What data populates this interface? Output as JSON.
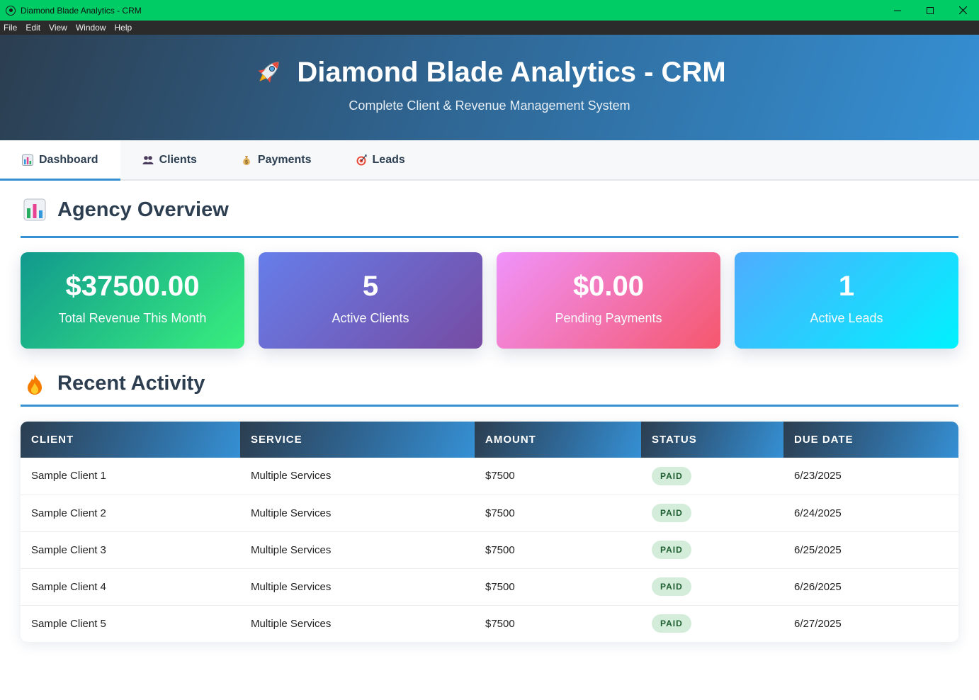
{
  "window": {
    "title": "Diamond Blade Analytics - CRM",
    "controls": {
      "minimize": "—",
      "maximize": "☐",
      "close": "✕"
    }
  },
  "menu": [
    "File",
    "Edit",
    "View",
    "Window",
    "Help"
  ],
  "header": {
    "icon": "rocket-icon",
    "title": "Diamond Blade Analytics - CRM",
    "subtitle": "Complete Client & Revenue Management System"
  },
  "tabs": [
    {
      "icon": "bar-chart-icon",
      "label": "Dashboard",
      "active": true
    },
    {
      "icon": "people-icon",
      "label": "Clients",
      "active": false
    },
    {
      "icon": "money-bag-icon",
      "label": "Payments",
      "active": false
    },
    {
      "icon": "target-icon",
      "label": "Leads",
      "active": false
    }
  ],
  "overview": {
    "icon": "bar-chart-icon",
    "title": "Agency Overview",
    "stats": [
      {
        "value": "$37500.00",
        "label": "Total Revenue This Month"
      },
      {
        "value": "5",
        "label": "Active Clients"
      },
      {
        "value": "$0.00",
        "label": "Pending Payments"
      },
      {
        "value": "1",
        "label": "Active Leads"
      }
    ]
  },
  "activity": {
    "icon": "fire-icon",
    "title": "Recent Activity",
    "columns": [
      "CLIENT",
      "SERVICE",
      "AMOUNT",
      "STATUS",
      "DUE DATE"
    ],
    "rows": [
      {
        "client": "Sample Client 1",
        "service": "Multiple Services",
        "amount": "$7500",
        "status": "PAID",
        "due": "6/23/2025"
      },
      {
        "client": "Sample Client 2",
        "service": "Multiple Services",
        "amount": "$7500",
        "status": "PAID",
        "due": "6/24/2025"
      },
      {
        "client": "Sample Client 3",
        "service": "Multiple Services",
        "amount": "$7500",
        "status": "PAID",
        "due": "6/25/2025"
      },
      {
        "client": "Sample Client 4",
        "service": "Multiple Services",
        "amount": "$7500",
        "status": "PAID",
        "due": "6/26/2025"
      },
      {
        "client": "Sample Client 5",
        "service": "Multiple Services",
        "amount": "$7500",
        "status": "PAID",
        "due": "6/27/2025"
      }
    ]
  },
  "colors": {
    "titlebar": "#00cc66",
    "accent": "#3590d4",
    "heading": "#2c3e50",
    "badge_bg": "#d4edda",
    "badge_text": "#1e5e30"
  }
}
